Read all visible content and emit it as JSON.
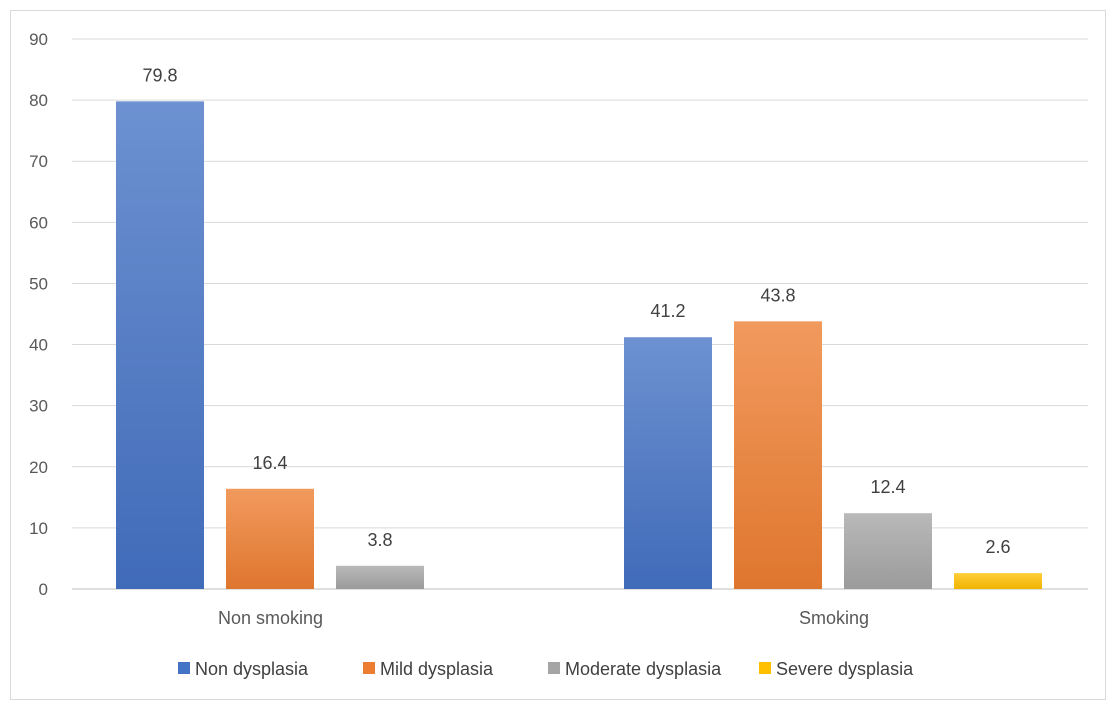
{
  "chart_data": {
    "type": "bar",
    "title": "",
    "xlabel": "",
    "ylabel": "",
    "categories": [
      "Non smoking",
      "Smoking"
    ],
    "ylim": [
      0,
      90
    ],
    "yticks": [
      0,
      10,
      20,
      30,
      40,
      50,
      60,
      70,
      80,
      90
    ],
    "grid": true,
    "legend_position": "bottom",
    "series": [
      {
        "name": "Non dysplasia",
        "values": [
          79.8,
          41.2
        ],
        "labels": [
          "79.8",
          "41.2"
        ],
        "color": "#4472c4"
      },
      {
        "name": "Mild dysplasia",
        "values": [
          16.4,
          43.8
        ],
        "labels": [
          "16.4",
          "43.8"
        ],
        "color": "#ed7d31"
      },
      {
        "name": "Moderate dysplasia",
        "values": [
          3.8,
          12.4
        ],
        "labels": [
          "3.8",
          "12.4"
        ],
        "color": "#a5a5a5"
      },
      {
        "name": "Severe dysplasia",
        "values": [
          null,
          2.6
        ],
        "labels": [
          null,
          "2.6"
        ],
        "color": "#ffc000"
      }
    ]
  }
}
